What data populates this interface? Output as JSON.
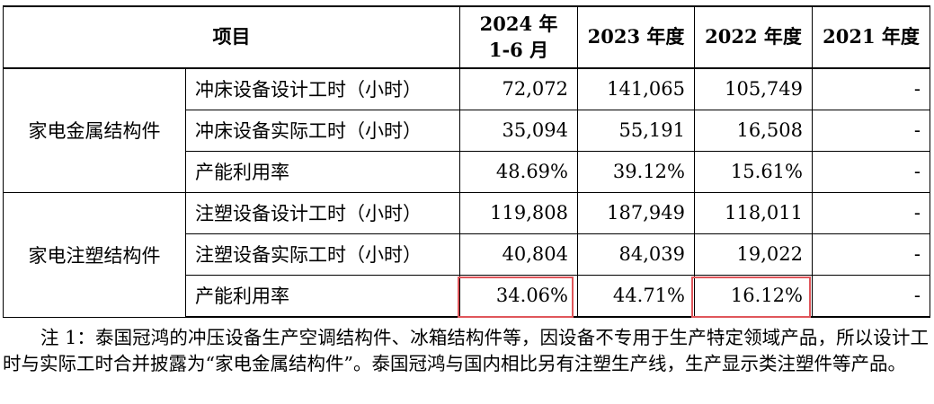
{
  "table": {
    "header": {
      "item": "项目",
      "col1_line1": "2024 年",
      "col1_line2": "1-6 月",
      "col2": "2023 年度",
      "col3": "2022 年度",
      "col4": "2021 年度"
    },
    "groups": [
      {
        "name": "家电金属结构件",
        "rows": [
          {
            "item": "冲床设备设计工时（小时）",
            "v2024": "72,072",
            "v2023": "141,065",
            "v2022": "105,749",
            "v2021": "-"
          },
          {
            "item": "冲床设备实际工时（小时）",
            "v2024": "35,094",
            "v2023": "55,191",
            "v2022": "16,508",
            "v2021": "-"
          },
          {
            "item": "产能利用率",
            "v2024": "48.69%",
            "v2023": "39.12%",
            "v2022": "15.61%",
            "v2021": "-"
          }
        ]
      },
      {
        "name": "家电注塑结构件",
        "rows": [
          {
            "item": "注塑设备设计工时（小时）",
            "v2024": "119,808",
            "v2023": "187,949",
            "v2022": "118,011",
            "v2021": "-"
          },
          {
            "item": "注塑设备实际工时（小时）",
            "v2024": "40,804",
            "v2023": "84,039",
            "v2022": "19,022",
            "v2021": "-"
          },
          {
            "item": "产能利用率",
            "v2024": "34.06%",
            "v2023": "44.71%",
            "v2022": "16.12%",
            "v2021": "-"
          }
        ]
      }
    ]
  },
  "highlight_color": "#e0565b",
  "note": "注 1：泰国冠鸿的冲压设备生产空调结构件、冰箱结构件等，因设备不专用于生产特定领域产品，所以设计工时与实际工时合并披露为“家电金属结构件”。泰国冠鸿与国内相比另有注塑生产线，生产显示类注塑件等产品。"
}
